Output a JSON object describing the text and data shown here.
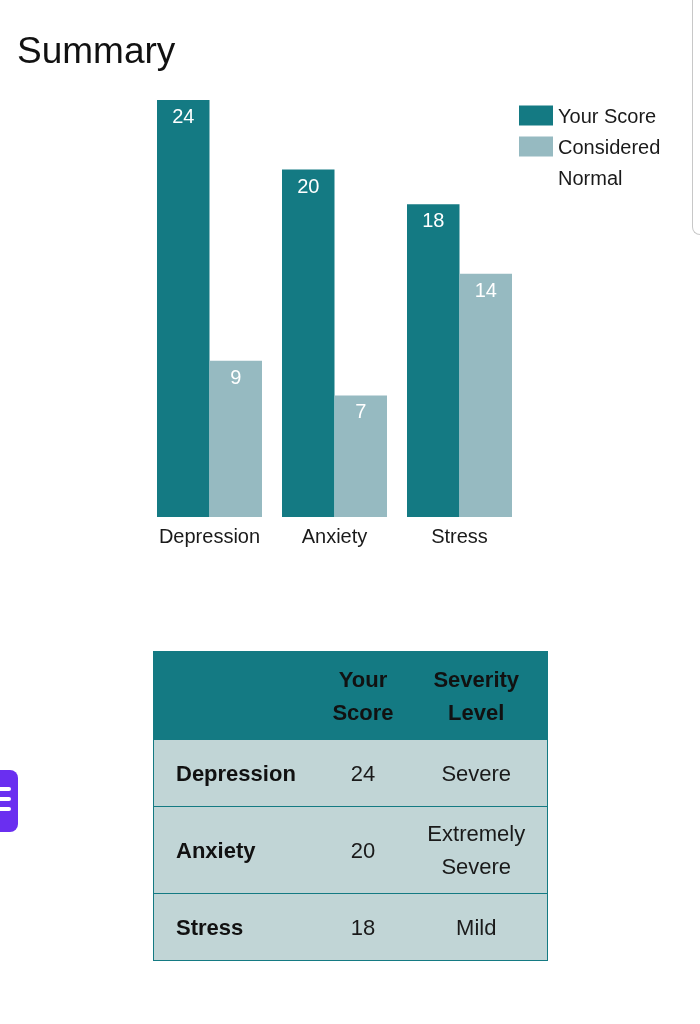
{
  "chart_data": [
    {
      "type": "bar",
      "title": "Summary",
      "categories": [
        "Depression",
        "Anxiety",
        "Stress"
      ],
      "series": [
        {
          "name": "Your Score",
          "color": "#147a83",
          "values": [
            24,
            20,
            18
          ]
        },
        {
          "name": "Considered Normal",
          "color": "#96bac1",
          "values": [
            9,
            7,
            14
          ]
        }
      ],
      "data_labels": true,
      "legend": "top right",
      "tick_labels": "x"
    },
    {
      "type": "other",
      "categories": [
        "Depression",
        "Anxiety",
        "Stress"
      ],
      "series": [
        {
          "name": "Your Score",
          "values": [
            24,
            20,
            18
          ]
        },
        {
          "name": "Severity Level",
          "values": [
            null,
            null,
            null
          ],
          "value_labels": [
            "Severe",
            "Extremely Severe",
            "Mild"
          ]
        }
      ],
      "data_labels": true
    }
  ]
}
